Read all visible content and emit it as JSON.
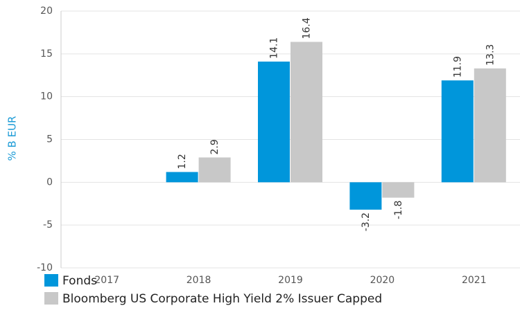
{
  "chart_data": {
    "type": "bar",
    "y_label": "% B EUR",
    "categories": [
      "2017",
      "2018",
      "2019",
      "2020",
      "2021"
    ],
    "series": [
      {
        "name": "Fonds",
        "color": "#0096db",
        "values": [
          null,
          1.2,
          14.1,
          -3.2,
          11.9
        ]
      },
      {
        "name": "Bloomberg US Corporate High Yield 2% Issuer Capped",
        "color": "#c8c8c8",
        "values": [
          null,
          2.9,
          16.4,
          -1.8,
          13.3
        ]
      }
    ],
    "ylim": [
      -10,
      20
    ],
    "yticks": [
      -10,
      -5,
      0,
      5,
      10,
      15,
      20
    ],
    "grid": true,
    "y_label_color": "#1a9ad6"
  }
}
